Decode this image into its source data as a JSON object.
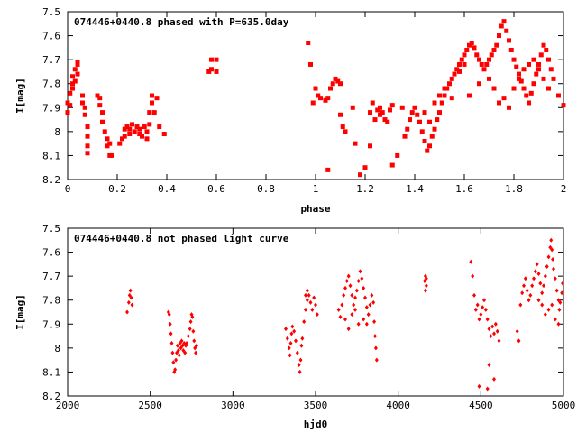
{
  "chart_data": [
    {
      "type": "scatter",
      "title": "074446+0440.8 phased with P=635.0day",
      "xlabel": "phase",
      "ylabel": "I[mag]",
      "xlim": [
        0,
        2
      ],
      "ylim": [
        7.5,
        8.2
      ],
      "y_inverted": true,
      "xticks": [
        0,
        0.2,
        0.4,
        0.6,
        0.8,
        1,
        1.2,
        1.4,
        1.6,
        1.8,
        2
      ],
      "xtick_labels": [
        "0",
        "0.2",
        "0.4",
        "0.6",
        "0.8",
        "1",
        "1.2",
        "1.4",
        "1.6",
        "1.8",
        "2"
      ],
      "yticks": [
        7.5,
        7.6,
        7.7,
        7.8,
        7.9,
        8.0,
        8.1,
        8.2
      ],
      "ytick_labels": [
        "7.5",
        "7.6",
        "7.7",
        "7.8",
        "7.9",
        "8",
        "8.1",
        "8.2"
      ],
      "marker_color": "#ff0000",
      "grid": false,
      "points": [
        [
          0.0,
          7.92
        ],
        [
          0.0,
          7.88
        ],
        [
          0.01,
          7.84
        ],
        [
          0.01,
          7.89
        ],
        [
          0.02,
          7.8
        ],
        [
          0.02,
          7.77
        ],
        [
          0.02,
          7.82
        ],
        [
          0.03,
          7.74
        ],
        [
          0.03,
          7.79
        ],
        [
          0.04,
          7.72
        ],
        [
          0.04,
          7.76
        ],
        [
          0.04,
          7.71
        ],
        [
          0.06,
          7.85
        ],
        [
          0.06,
          7.88
        ],
        [
          0.07,
          7.93
        ],
        [
          0.07,
          7.9
        ],
        [
          0.08,
          7.98
        ],
        [
          0.08,
          8.02
        ],
        [
          0.08,
          8.06
        ],
        [
          0.08,
          8.09
        ],
        [
          0.12,
          7.85
        ],
        [
          0.13,
          7.86
        ],
        [
          0.13,
          7.89
        ],
        [
          0.14,
          7.92
        ],
        [
          0.14,
          7.96
        ],
        [
          0.15,
          8.0
        ],
        [
          0.16,
          8.03
        ],
        [
          0.16,
          8.06
        ],
        [
          0.17,
          8.1
        ],
        [
          0.18,
          8.1
        ],
        [
          0.17,
          8.05
        ],
        [
          0.21,
          8.05
        ],
        [
          0.22,
          8.03
        ],
        [
          0.23,
          7.99
        ],
        [
          0.23,
          8.02
        ],
        [
          0.24,
          7.98
        ],
        [
          0.25,
          8.01
        ],
        [
          0.25,
          7.99
        ],
        [
          0.26,
          7.97
        ],
        [
          0.27,
          8.0
        ],
        [
          0.28,
          7.98
        ],
        [
          0.29,
          8.01
        ],
        [
          0.29,
          7.99
        ],
        [
          0.3,
          8.02
        ],
        [
          0.31,
          7.98
        ],
        [
          0.32,
          8.0
        ],
        [
          0.32,
          8.03
        ],
        [
          0.33,
          7.97
        ],
        [
          0.33,
          7.92
        ],
        [
          0.34,
          7.88
        ],
        [
          0.34,
          7.85
        ],
        [
          0.36,
          7.86
        ],
        [
          0.35,
          7.92
        ],
        [
          0.37,
          7.98
        ],
        [
          0.39,
          8.01
        ],
        [
          0.57,
          7.75
        ],
        [
          0.58,
          7.74
        ],
        [
          0.58,
          7.7
        ],
        [
          0.6,
          7.7
        ],
        [
          0.6,
          7.75
        ],
        [
          0.97,
          7.63
        ],
        [
          0.98,
          7.72
        ],
        [
          0.99,
          7.88
        ],
        [
          1.0,
          7.82
        ],
        [
          1.01,
          7.85
        ],
        [
          1.02,
          7.86
        ],
        [
          1.04,
          7.87
        ],
        [
          1.05,
          7.86
        ],
        [
          1.06,
          7.82
        ],
        [
          1.07,
          7.8
        ],
        [
          1.08,
          7.78
        ],
        [
          1.09,
          7.79
        ],
        [
          1.1,
          7.8
        ],
        [
          1.05,
          8.16
        ],
        [
          1.1,
          7.93
        ],
        [
          1.11,
          7.98
        ],
        [
          1.12,
          8.0
        ],
        [
          1.15,
          7.9
        ],
        [
          1.16,
          8.05
        ],
        [
          1.18,
          8.18
        ],
        [
          1.2,
          8.15
        ],
        [
          1.22,
          8.06
        ],
        [
          1.22,
          7.92
        ],
        [
          1.23,
          7.88
        ],
        [
          1.24,
          7.95
        ],
        [
          1.25,
          7.91
        ],
        [
          1.26,
          7.93
        ],
        [
          1.26,
          7.9
        ],
        [
          1.27,
          7.92
        ],
        [
          1.28,
          7.95
        ],
        [
          1.29,
          7.96
        ],
        [
          1.3,
          7.91
        ],
        [
          1.31,
          7.89
        ],
        [
          1.31,
          8.14
        ],
        [
          1.33,
          8.1
        ],
        [
          1.35,
          7.9
        ],
        [
          1.36,
          8.02
        ],
        [
          1.37,
          7.99
        ],
        [
          1.38,
          7.95
        ],
        [
          1.39,
          7.92
        ],
        [
          1.4,
          7.9
        ],
        [
          1.41,
          7.93
        ],
        [
          1.42,
          7.96
        ],
        [
          1.43,
          8.0
        ],
        [
          1.44,
          8.04
        ],
        [
          1.45,
          8.08
        ],
        [
          1.46,
          8.06
        ],
        [
          1.47,
          8.02
        ],
        [
          1.48,
          7.99
        ],
        [
          1.49,
          7.95
        ],
        [
          1.5,
          7.92
        ],
        [
          1.51,
          7.88
        ],
        [
          1.52,
          7.85
        ],
        [
          1.53,
          7.82
        ],
        [
          1.54,
          7.8
        ],
        [
          1.55,
          7.78
        ],
        [
          1.56,
          7.76
        ],
        [
          1.57,
          7.74
        ],
        [
          1.58,
          7.72
        ],
        [
          1.59,
          7.7
        ],
        [
          1.6,
          7.68
        ],
        [
          1.61,
          7.66
        ],
        [
          1.62,
          7.64
        ],
        [
          1.63,
          7.63
        ],
        [
          1.64,
          7.65
        ],
        [
          1.65,
          7.68
        ],
        [
          1.66,
          7.7
        ],
        [
          1.67,
          7.72
        ],
        [
          1.68,
          7.74
        ],
        [
          1.69,
          7.72
        ],
        [
          1.7,
          7.7
        ],
        [
          1.71,
          7.68
        ],
        [
          1.72,
          7.66
        ],
        [
          1.73,
          7.64
        ],
        [
          1.74,
          7.6
        ],
        [
          1.75,
          7.56
        ],
        [
          1.76,
          7.54
        ],
        [
          1.77,
          7.58
        ],
        [
          1.78,
          7.62
        ],
        [
          1.79,
          7.66
        ],
        [
          1.8,
          7.7
        ],
        [
          1.81,
          7.73
        ],
        [
          1.82,
          7.76
        ],
        [
          1.83,
          7.79
        ],
        [
          1.84,
          7.82
        ],
        [
          1.85,
          7.85
        ],
        [
          1.86,
          7.88
        ],
        [
          1.87,
          7.84
        ],
        [
          1.88,
          7.8
        ],
        [
          1.89,
          7.76
        ],
        [
          1.9,
          7.72
        ],
        [
          1.91,
          7.68
        ],
        [
          1.92,
          7.64
        ],
        [
          1.93,
          7.66
        ],
        [
          1.94,
          7.7
        ],
        [
          1.95,
          7.74
        ],
        [
          1.96,
          7.78
        ],
        [
          1.98,
          7.85
        ],
        [
          2.0,
          7.89
        ],
        [
          1.44,
          7.92
        ],
        [
          1.46,
          7.96
        ],
        [
          1.48,
          7.88
        ],
        [
          1.5,
          7.85
        ],
        [
          1.52,
          7.82
        ],
        [
          1.55,
          7.86
        ],
        [
          1.58,
          7.75
        ],
        [
          1.6,
          7.72
        ],
        [
          1.62,
          7.85
        ],
        [
          1.66,
          7.8
        ],
        [
          1.7,
          7.78
        ],
        [
          1.72,
          7.82
        ],
        [
          1.74,
          7.88
        ],
        [
          1.76,
          7.86
        ],
        [
          1.78,
          7.9
        ],
        [
          1.8,
          7.82
        ],
        [
          1.82,
          7.78
        ],
        [
          1.84,
          7.74
        ],
        [
          1.86,
          7.72
        ],
        [
          1.88,
          7.7
        ],
        [
          1.9,
          7.74
        ],
        [
          1.92,
          7.78
        ],
        [
          1.94,
          7.82
        ]
      ]
    },
    {
      "type": "scatter",
      "title": "074446+0440.8 not phased light curve",
      "xlabel": "hjd0",
      "ylabel": "I[mag]",
      "xlim": [
        2000,
        5000
      ],
      "ylim": [
        7.5,
        8.2
      ],
      "y_inverted": true,
      "xticks": [
        2000,
        2500,
        3000,
        3500,
        4000,
        4500,
        5000
      ],
      "xtick_labels": [
        "2000",
        "2500",
        "3000",
        "3500",
        "4000",
        "4500",
        "5000"
      ],
      "yticks": [
        7.5,
        7.6,
        7.7,
        7.8,
        7.9,
        8.0,
        8.1,
        8.2
      ],
      "ytick_labels": [
        "7.5",
        "7.6",
        "7.7",
        "7.8",
        "7.9",
        "8",
        "8.1",
        "8.2"
      ],
      "marker_color": "#ff0000",
      "grid": false,
      "points": [
        [
          2360,
          7.85
        ],
        [
          2370,
          7.81
        ],
        [
          2375,
          7.78
        ],
        [
          2380,
          7.76
        ],
        [
          2385,
          7.79
        ],
        [
          2390,
          7.82
        ],
        [
          2610,
          7.85
        ],
        [
          2615,
          7.86
        ],
        [
          2620,
          7.9
        ],
        [
          2625,
          7.94
        ],
        [
          2630,
          7.98
        ],
        [
          2635,
          8.02
        ],
        [
          2640,
          8.06
        ],
        [
          2645,
          8.1
        ],
        [
          2650,
          8.09
        ],
        [
          2655,
          8.05
        ],
        [
          2660,
          8.02
        ],
        [
          2665,
          7.99
        ],
        [
          2670,
          8.01
        ],
        [
          2675,
          8.03
        ],
        [
          2680,
          7.98
        ],
        [
          2685,
          8.0
        ],
        [
          2690,
          7.97
        ],
        [
          2695,
          7.99
        ],
        [
          2700,
          8.01
        ],
        [
          2705,
          7.98
        ],
        [
          2710,
          8.02
        ],
        [
          2715,
          7.99
        ],
        [
          2720,
          7.98
        ],
        [
          2730,
          7.95
        ],
        [
          2740,
          7.92
        ],
        [
          2745,
          7.89
        ],
        [
          2750,
          7.86
        ],
        [
          2755,
          7.87
        ],
        [
          2760,
          7.93
        ],
        [
          2765,
          7.97
        ],
        [
          2770,
          8.0
        ],
        [
          2775,
          8.02
        ],
        [
          2780,
          7.99
        ],
        [
          3320,
          7.92
        ],
        [
          3330,
          7.96
        ],
        [
          3340,
          8.0
        ],
        [
          3345,
          8.03
        ],
        [
          3350,
          7.98
        ],
        [
          3355,
          7.94
        ],
        [
          3360,
          7.91
        ],
        [
          3370,
          7.93
        ],
        [
          3380,
          7.97
        ],
        [
          3390,
          8.02
        ],
        [
          3400,
          8.07
        ],
        [
          3405,
          8.1
        ],
        [
          3410,
          8.05
        ],
        [
          3415,
          7.99
        ],
        [
          3420,
          7.96
        ],
        [
          3430,
          7.89
        ],
        [
          3440,
          7.84
        ],
        [
          3450,
          7.8
        ],
        [
          3460,
          7.78
        ],
        [
          3470,
          7.81
        ],
        [
          3480,
          7.84
        ],
        [
          3490,
          7.79
        ],
        [
          3500,
          7.82
        ],
        [
          3510,
          7.86
        ],
        [
          3440,
          7.78
        ],
        [
          3450,
          7.76
        ],
        [
          3640,
          7.84
        ],
        [
          3650,
          7.87
        ],
        [
          3660,
          7.82
        ],
        [
          3670,
          7.78
        ],
        [
          3680,
          7.75
        ],
        [
          3690,
          7.72
        ],
        [
          3700,
          7.7
        ],
        [
          3710,
          7.74
        ],
        [
          3720,
          7.78
        ],
        [
          3730,
          7.82
        ],
        [
          3740,
          7.79
        ],
        [
          3750,
          7.76
        ],
        [
          3760,
          7.72
        ],
        [
          3770,
          7.68
        ],
        [
          3780,
          7.71
        ],
        [
          3790,
          7.75
        ],
        [
          3800,
          7.79
        ],
        [
          3810,
          7.83
        ],
        [
          3820,
          7.86
        ],
        [
          3830,
          7.82
        ],
        [
          3840,
          7.78
        ],
        [
          3850,
          7.81
        ],
        [
          3855,
          7.89
        ],
        [
          3860,
          7.95
        ],
        [
          3865,
          8.0
        ],
        [
          3870,
          8.05
        ],
        [
          3680,
          7.88
        ],
        [
          3700,
          7.92
        ],
        [
          3720,
          7.86
        ],
        [
          3740,
          7.84
        ],
        [
          3760,
          7.9
        ],
        [
          3790,
          7.88
        ],
        [
          3810,
          7.9
        ],
        [
          4160,
          7.72
        ],
        [
          4165,
          7.7
        ],
        [
          4170,
          7.71
        ],
        [
          4165,
          7.76
        ],
        [
          4170,
          7.74
        ],
        [
          4440,
          7.64
        ],
        [
          4450,
          7.7
        ],
        [
          4460,
          7.78
        ],
        [
          4470,
          7.84
        ],
        [
          4480,
          7.82
        ],
        [
          4490,
          7.88
        ],
        [
          4500,
          7.86
        ],
        [
          4510,
          7.83
        ],
        [
          4520,
          7.8
        ],
        [
          4530,
          7.84
        ],
        [
          4540,
          7.88
        ],
        [
          4550,
          7.92
        ],
        [
          4560,
          7.95
        ],
        [
          4570,
          7.91
        ],
        [
          4580,
          7.94
        ],
        [
          4590,
          7.9
        ],
        [
          4600,
          7.93
        ],
        [
          4610,
          7.97
        ],
        [
          4490,
          8.16
        ],
        [
          4540,
          8.17
        ],
        [
          4550,
          8.07
        ],
        [
          4580,
          8.13
        ],
        [
          4720,
          7.93
        ],
        [
          4730,
          7.97
        ],
        [
          4740,
          7.82
        ],
        [
          4750,
          7.77
        ],
        [
          4760,
          7.74
        ],
        [
          4770,
          7.71
        ],
        [
          4780,
          7.76
        ],
        [
          4790,
          7.8
        ],
        [
          4800,
          7.78
        ],
        [
          4810,
          7.74
        ],
        [
          4820,
          7.71
        ],
        [
          4830,
          7.68
        ],
        [
          4840,
          7.65
        ],
        [
          4850,
          7.69
        ],
        [
          4860,
          7.73
        ],
        [
          4870,
          7.77
        ],
        [
          4880,
          7.74
        ],
        [
          4890,
          7.7
        ],
        [
          4900,
          7.66
        ],
        [
          4910,
          7.62
        ],
        [
          4920,
          7.58
        ],
        [
          4925,
          7.55
        ],
        [
          4930,
          7.59
        ],
        [
          4935,
          7.63
        ],
        [
          4940,
          7.67
        ],
        [
          4950,
          7.71
        ],
        [
          4960,
          7.76
        ],
        [
          4970,
          7.8
        ],
        [
          4975,
          7.84
        ],
        [
          4980,
          7.81
        ],
        [
          4990,
          7.77
        ],
        [
          4995,
          7.73
        ],
        [
          4870,
          7.82
        ],
        [
          4890,
          7.86
        ],
        [
          4910,
          7.84
        ],
        [
          4930,
          7.82
        ],
        [
          4950,
          7.88
        ],
        [
          4970,
          7.9
        ],
        [
          4850,
          7.8
        ]
      ]
    }
  ]
}
